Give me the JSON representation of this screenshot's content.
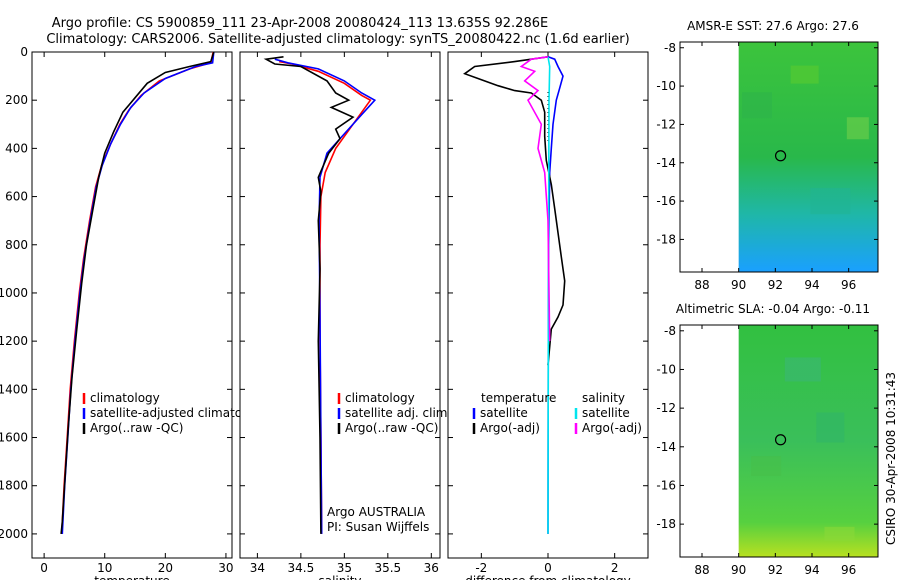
{
  "header": {
    "line1": "Argo profile: CS 5900859_111 23-Apr-2008 20080424_113 13.635S 92.286E",
    "line2": "Climatology: CARS2006. Satellite-adjusted climatology: synTS_20080422.nc (1.6d earlier)"
  },
  "side_text": "CSIRO 30-Apr-2008 10:31:43",
  "colors": {
    "climatology": "#ff0000",
    "satellite": "#0000ff",
    "argo": "#000000",
    "sat_sal": "#00e5ee",
    "argo_sal": "#ff00ff"
  },
  "chart_data": [
    {
      "type": "line",
      "xlabel": "temperature",
      "xlim": [
        -2,
        31
      ],
      "ylim": [
        0,
        2100
      ],
      "xticks": [
        0,
        10,
        20,
        30
      ],
      "yticks": [
        0,
        200,
        400,
        600,
        800,
        1000,
        1200,
        1400,
        1600,
        1800,
        2000
      ],
      "legend": [
        "climatology",
        "satellite-adjusted climatology",
        "Argo(..raw -QC)"
      ],
      "series": [
        {
          "name": "climatology",
          "color": "#ff0000",
          "points": [
            [
              27.9,
              0
            ],
            [
              27.5,
              45
            ],
            [
              24,
              70
            ],
            [
              19,
              120
            ],
            [
              16,
              180
            ],
            [
              14,
              240
            ],
            [
              12.5,
              300
            ],
            [
              11,
              380
            ],
            [
              9.5,
              470
            ],
            [
              8.5,
              560
            ],
            [
              7.5,
              700
            ],
            [
              6.5,
              860
            ],
            [
              5.8,
              1000
            ],
            [
              5,
              1200
            ],
            [
              4.3,
              1400
            ],
            [
              3.8,
              1600
            ],
            [
              3.3,
              1800
            ],
            [
              2.9,
              2000
            ]
          ]
        },
        {
          "name": "satellite",
          "color": "#0000ff",
          "points": [
            [
              28,
              0
            ],
            [
              27.8,
              45
            ],
            [
              25,
              60
            ],
            [
              20,
              110
            ],
            [
              16.5,
              170
            ],
            [
              14.3,
              230
            ],
            [
              12.6,
              300
            ],
            [
              11,
              380
            ],
            [
              9.6,
              470
            ],
            [
              8.6,
              560
            ],
            [
              7.6,
              700
            ],
            [
              6.6,
              860
            ],
            [
              5.9,
              1000
            ],
            [
              5.1,
              1200
            ],
            [
              4.4,
              1400
            ],
            [
              3.9,
              1600
            ],
            [
              3.4,
              1800
            ],
            [
              3,
              2000
            ]
          ]
        },
        {
          "name": "argo",
          "color": "#000000",
          "points": [
            [
              28,
              0
            ],
            [
              27.5,
              40
            ],
            [
              24,
              60
            ],
            [
              20,
              85
            ],
            [
              17,
              130
            ],
            [
              15,
              190
            ],
            [
              13,
              250
            ],
            [
              11.5,
              330
            ],
            [
              10,
              420
            ],
            [
              9,
              520
            ],
            [
              8,
              660
            ],
            [
              7,
              800
            ],
            [
              6.2,
              960
            ],
            [
              5.4,
              1150
            ],
            [
              4.6,
              1350
            ],
            [
              4,
              1550
            ],
            [
              3.5,
              1750
            ],
            [
              3,
              1950
            ],
            [
              2.8,
              2000
            ]
          ]
        }
      ]
    },
    {
      "type": "line",
      "xlabel": "salinity",
      "xlim": [
        33.8,
        36.1
      ],
      "ylim": [
        0,
        2100
      ],
      "xticks": [
        34,
        34.5,
        35,
        35.5,
        36
      ],
      "legend": [
        "climatology",
        "satellite adj. clim.",
        "Argo(..raw -QC)"
      ],
      "annotation": [
        "Argo AUSTRALIA",
        "PI: Susan Wijffels"
      ],
      "series": [
        {
          "name": "climatology",
          "color": "#ff0000",
          "points": [
            [
              34.25,
              40
            ],
            [
              34.4,
              50
            ],
            [
              34.7,
              80
            ],
            [
              35,
              130
            ],
            [
              35.2,
              180
            ],
            [
              35.3,
              200
            ],
            [
              35.1,
              300
            ],
            [
              34.9,
              400
            ],
            [
              34.78,
              500
            ],
            [
              34.73,
              600
            ],
            [
              34.72,
              800
            ],
            [
              34.72,
              1200
            ],
            [
              34.73,
              1600
            ],
            [
              34.74,
              2000
            ]
          ]
        },
        {
          "name": "satellite",
          "color": "#0000ff",
          "points": [
            [
              34.2,
              30
            ],
            [
              34.35,
              45
            ],
            [
              34.7,
              70
            ],
            [
              35,
              120
            ],
            [
              35.2,
              170
            ],
            [
              35.35,
              200
            ],
            [
              35.2,
              260
            ],
            [
              35,
              340
            ],
            [
              34.8,
              420
            ],
            [
              34.72,
              520
            ],
            [
              34.71,
              700
            ],
            [
              34.72,
              1100
            ],
            [
              34.73,
              1600
            ],
            [
              34.74,
              2000
            ]
          ]
        },
        {
          "name": "argo",
          "color": "#000000",
          "points": [
            [
              34.3,
              20
            ],
            [
              34.1,
              30
            ],
            [
              34.2,
              50
            ],
            [
              34.5,
              60
            ],
            [
              34.8,
              120
            ],
            [
              34.9,
              170
            ],
            [
              35.05,
              200
            ],
            [
              34.85,
              230
            ],
            [
              35.1,
              270
            ],
            [
              34.9,
              320
            ],
            [
              34.95,
              360
            ],
            [
              34.82,
              420
            ],
            [
              34.7,
              520
            ],
            [
              34.73,
              580
            ],
            [
              34.7,
              700
            ],
            [
              34.72,
              900
            ],
            [
              34.7,
              1200
            ],
            [
              34.72,
              1600
            ],
            [
              34.73,
              2000
            ]
          ]
        }
      ]
    },
    {
      "type": "line",
      "xlabel": "difference from climatology",
      "xlim": [
        -3,
        3
      ],
      "ylim": [
        0,
        2100
      ],
      "xticks": [
        -2,
        0,
        2
      ],
      "legend_left": [
        "temperature",
        "satellite",
        "Argo(-adj)"
      ],
      "legend_right": [
        "salinity",
        "satellite",
        "Argo(-adj)"
      ],
      "series": [
        {
          "name": "temp satellite",
          "color": "#0000ff",
          "points": [
            [
              0,
              20
            ],
            [
              0.2,
              30
            ],
            [
              0.3,
              60
            ],
            [
              0.45,
              100
            ],
            [
              0.35,
              150
            ],
            [
              0.25,
              200
            ],
            [
              0.15,
              300
            ],
            [
              0.1,
              400
            ],
            [
              0.05,
              500
            ],
            [
              0.02,
              800
            ],
            [
              0.01,
              1200
            ],
            [
              0,
              2000
            ]
          ]
        },
        {
          "name": "temp argo",
          "color": "#000000",
          "points": [
            [
              0,
              20
            ],
            [
              -1,
              40
            ],
            [
              -2.2,
              60
            ],
            [
              -2.5,
              90
            ],
            [
              -2.1,
              110
            ],
            [
              -1.5,
              140
            ],
            [
              -1,
              160
            ],
            [
              -0.5,
              170
            ],
            [
              -0.2,
              200
            ],
            [
              -0.1,
              250
            ],
            [
              -0.1,
              350
            ],
            [
              -0.05,
              450
            ],
            [
              0.1,
              550
            ],
            [
              0.2,
              650
            ],
            [
              0.3,
              750
            ],
            [
              0.4,
              850
            ],
            [
              0.5,
              950
            ],
            [
              0.45,
              1050
            ],
            [
              0.3,
              1100
            ],
            [
              0.1,
              1150
            ],
            [
              0,
              1300
            ]
          ]
        },
        {
          "name": "sal satellite",
          "color": "#00e5ee",
          "points": [
            [
              0,
              20
            ],
            [
              0.05,
              60
            ],
            [
              0.03,
              200
            ],
            [
              0.02,
              600
            ],
            [
              0.01,
              1200
            ],
            [
              0,
              2000
            ]
          ]
        },
        {
          "name": "sal argo",
          "color": "#ff00ff",
          "points": [
            [
              0,
              20
            ],
            [
              -0.5,
              30
            ],
            [
              -0.8,
              60
            ],
            [
              -0.4,
              80
            ],
            [
              -0.7,
              120
            ],
            [
              -0.3,
              160
            ],
            [
              -0.6,
              200
            ],
            [
              -0.2,
              300
            ],
            [
              -0.3,
              400
            ],
            [
              -0.1,
              500
            ],
            [
              0,
              700
            ],
            [
              0.05,
              1200
            ]
          ]
        }
      ]
    },
    {
      "type": "heatmap",
      "title": "AMSR-E SST: 27.6 Argo: 27.6",
      "xlim": [
        86.8,
        97.6
      ],
      "ylim": [
        -19.7,
        -7.7
      ],
      "xticks": [
        88,
        90,
        92,
        94,
        96
      ],
      "yticks": [
        -8,
        -10,
        -12,
        -14,
        -16,
        -18
      ],
      "marker": [
        92.286,
        -13.635
      ]
    },
    {
      "type": "heatmap",
      "title": "Altimetric SLA: -0.04 Argo: -0.11",
      "xlim": [
        86.8,
        97.6
      ],
      "ylim": [
        -19.7,
        -7.7
      ],
      "xticks": [
        88,
        90,
        92,
        94,
        96
      ],
      "yticks": [
        -8,
        -10,
        -12,
        -14,
        -16,
        -18
      ],
      "marker": [
        92.286,
        -13.635
      ]
    }
  ]
}
